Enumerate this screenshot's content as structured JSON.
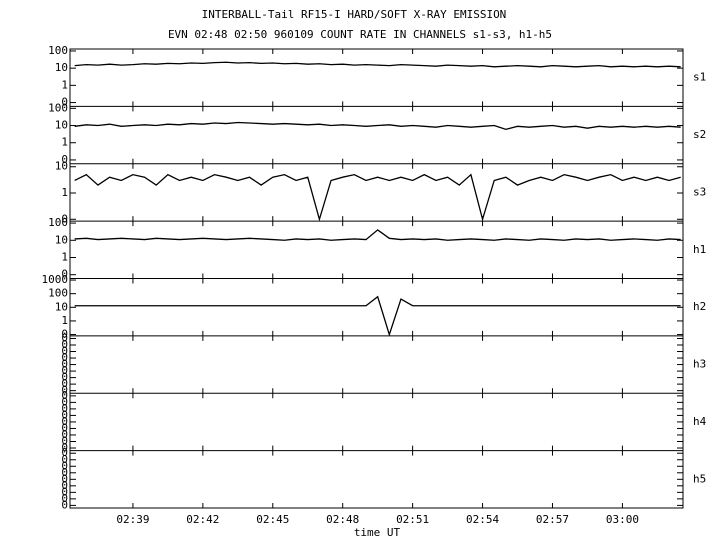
{
  "chart_data": {
    "type": "line",
    "title": "INTERBALL-Tail RF15-I HARD/SOFT X-RAY EMISSION",
    "subtitle": "EVN 02:48 02:50 960109  COUNT RATE IN CHANNELS s1-s3, h1-h5",
    "xlabel": "time UT",
    "color": "#000000",
    "xlim": [
      156.3,
      182.6
    ],
    "xticks": [
      {
        "value": 159,
        "label": "02:39"
      },
      {
        "value": 162,
        "label": "02:42"
      },
      {
        "value": 165,
        "label": "02:45"
      },
      {
        "value": 168,
        "label": "02:48"
      },
      {
        "value": 171,
        "label": "02:51"
      },
      {
        "value": 174,
        "label": "02:54"
      },
      {
        "value": 177,
        "label": "02:57"
      },
      {
        "value": 180,
        "label": "03:00"
      }
    ],
    "x": [
      156.5,
      157,
      157.5,
      158,
      158.5,
      159,
      159.5,
      160,
      160.5,
      161,
      161.5,
      162,
      162.5,
      163,
      163.5,
      164,
      164.5,
      165,
      165.5,
      166,
      166.5,
      167,
      167.5,
      168,
      168.5,
      169,
      169.5,
      170,
      170.5,
      171,
      171.5,
      172,
      172.5,
      173,
      173.5,
      174,
      174.5,
      175,
      175.5,
      176,
      176.5,
      177,
      177.5,
      178,
      178.5,
      179,
      179.5,
      180,
      180.5,
      181,
      181.5,
      182,
      182.5
    ],
    "panels": [
      {
        "name": "s1",
        "log": true,
        "ylim": [
          0.06,
          130
        ],
        "yticks": [
          100,
          10,
          1,
          {
            "value": 0.1,
            "label": "0"
          }
        ],
        "values": [
          14,
          16,
          15,
          17,
          15,
          16,
          18,
          17,
          19,
          18,
          20,
          19,
          21,
          22,
          20,
          21,
          19,
          20,
          18,
          19,
          17,
          18,
          16,
          17,
          15,
          16,
          15,
          14,
          16,
          15,
          14,
          13,
          15,
          14,
          13,
          14,
          12,
          13,
          14,
          13,
          12,
          14,
          13,
          12,
          13,
          14,
          12,
          13,
          12,
          13,
          12,
          13,
          12
        ]
      },
      {
        "name": "s2",
        "log": true,
        "ylim": [
          0.06,
          130
        ],
        "yticks": [
          100,
          10,
          1,
          {
            "value": 0.1,
            "label": "0"
          }
        ],
        "values": [
          9,
          11,
          10,
          12,
          9,
          10,
          11,
          10,
          12,
          11,
          13,
          12,
          14,
          13,
          15,
          14,
          13,
          12,
          13,
          12,
          11,
          12,
          10,
          11,
          10,
          9,
          10,
          11,
          9,
          10,
          9,
          8,
          10,
          9,
          8,
          9,
          10,
          6,
          9,
          8,
          9,
          10,
          8,
          9,
          7,
          9,
          8,
          9,
          8,
          9,
          8,
          9,
          8
        ]
      },
      {
        "name": "s3",
        "log": true,
        "ylim": [
          0.085,
          13
        ],
        "yticks": [
          10,
          1,
          {
            "value": 0.1,
            "label": "0"
          }
        ],
        "values": [
          3,
          5,
          2,
          4,
          3,
          5,
          4,
          2,
          5,
          3,
          4,
          3,
          5,
          4,
          3,
          4,
          2,
          4,
          5,
          3,
          4,
          0.1,
          3,
          4,
          5,
          3,
          4,
          3,
          4,
          3,
          5,
          3,
          4,
          2,
          5,
          0.1,
          3,
          4,
          2,
          3,
          4,
          3,
          5,
          4,
          3,
          4,
          5,
          3,
          4,
          3,
          4,
          3,
          4
        ]
      },
      {
        "name": "h1",
        "log": true,
        "ylim": [
          0.06,
          130
        ],
        "yticks": [
          100,
          10,
          1,
          {
            "value": 0.1,
            "label": "0"
          }
        ],
        "values": [
          12,
          13,
          11,
          12,
          13,
          12,
          11,
          13,
          12,
          11,
          12,
          13,
          12,
          11,
          12,
          13,
          12,
          11,
          10,
          12,
          11,
          12,
          10,
          11,
          12,
          11,
          40,
          13,
          11,
          12,
          11,
          12,
          10,
          11,
          12,
          11,
          10,
          12,
          11,
          10,
          12,
          11,
          10,
          12,
          11,
          12,
          10,
          11,
          12,
          11,
          10,
          12,
          11
        ]
      },
      {
        "name": "h2",
        "log": true,
        "ylim": [
          0.08,
          1300
        ],
        "yticks": [
          1000,
          100,
          10,
          1,
          {
            "value": 0.1,
            "label": "0"
          }
        ],
        "values": [
          13,
          13,
          13,
          13,
          13,
          13,
          13,
          13,
          13,
          13,
          13,
          13,
          13,
          13,
          13,
          13,
          13,
          13,
          13,
          13,
          13,
          13,
          13,
          13,
          13,
          13,
          60,
          0.1,
          40,
          13,
          13,
          13,
          13,
          13,
          13,
          13,
          13,
          13,
          13,
          13,
          13,
          13,
          13,
          13,
          13,
          13,
          13,
          13,
          13,
          13,
          13,
          13,
          13
        ]
      },
      {
        "name": "h3",
        "log": false,
        "ylim": [
          -1.1,
          1.1
        ],
        "yticks": [
          {
            "value": 1,
            "label": "0"
          },
          {
            "value": 0.75,
            "label": "0"
          },
          {
            "value": 0.5,
            "label": "0"
          },
          {
            "value": 0.25,
            "label": "0"
          },
          0,
          {
            "value": -0.25,
            "label": "0"
          },
          {
            "value": -0.5,
            "label": "0"
          },
          {
            "value": -0.75,
            "label": "0"
          },
          {
            "value": -1,
            "label": "0"
          }
        ]
      },
      {
        "name": "h4",
        "log": false,
        "ylim": [
          -1.1,
          1.1
        ],
        "yticks": [
          {
            "value": 1,
            "label": "0"
          },
          {
            "value": 0.75,
            "label": "0"
          },
          {
            "value": 0.5,
            "label": "0"
          },
          {
            "value": 0.25,
            "label": "0"
          },
          0,
          {
            "value": -0.25,
            "label": "0"
          },
          {
            "value": -0.5,
            "label": "0"
          },
          {
            "value": -0.75,
            "label": "0"
          },
          {
            "value": -1,
            "label": "0"
          }
        ]
      },
      {
        "name": "h5",
        "log": false,
        "ylim": [
          -1.1,
          1.1
        ],
        "yticks": [
          {
            "value": 1,
            "label": "0"
          },
          {
            "value": 0.75,
            "label": "0"
          },
          {
            "value": 0.5,
            "label": "0"
          },
          {
            "value": 0.25,
            "label": "0"
          },
          0,
          {
            "value": -0.25,
            "label": "0"
          },
          {
            "value": -0.5,
            "label": "0"
          },
          {
            "value": -0.75,
            "label": "0"
          },
          {
            "value": -1,
            "label": "0"
          }
        ]
      }
    ]
  }
}
